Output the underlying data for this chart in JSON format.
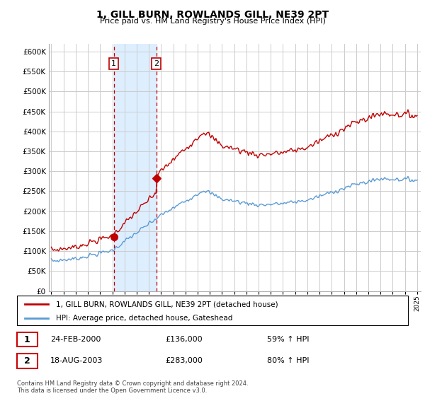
{
  "title": "1, GILL BURN, ROWLANDS GILL, NE39 2PT",
  "subtitle": "Price paid vs. HM Land Registry's House Price Index (HPI)",
  "legend_line1": "1, GILL BURN, ROWLANDS GILL, NE39 2PT (detached house)",
  "legend_line2": "HPI: Average price, detached house, Gateshead",
  "footnote": "Contains HM Land Registry data © Crown copyright and database right 2024.\nThis data is licensed under the Open Government Licence v3.0.",
  "transaction1_date": "24-FEB-2000",
  "transaction1_price": "£136,000",
  "transaction1_hpi": "59% ↑ HPI",
  "transaction2_date": "18-AUG-2003",
  "transaction2_price": "£283,000",
  "transaction2_hpi": "80% ↑ HPI",
  "hpi_color": "#5b9bd5",
  "price_color": "#c00000",
  "shading_color": "#ddeeff",
  "vline_color": "#c00000",
  "ylim_min": 0,
  "ylim_max": 620000,
  "t1_year": 2000.12,
  "t2_year": 2003.62,
  "price_t1": 136000,
  "price_t2": 283000,
  "background_color": "#ffffff",
  "grid_color": "#cccccc"
}
